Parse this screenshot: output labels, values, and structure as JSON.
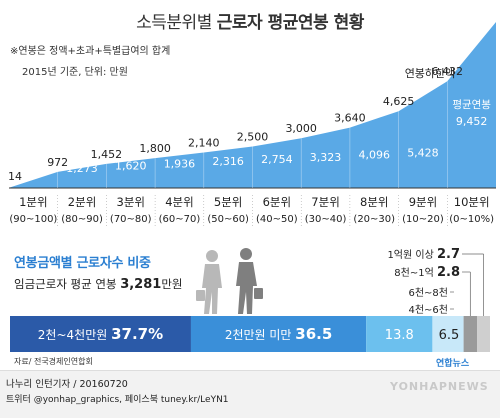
{
  "title": {
    "light": "소득분위별",
    "bold": "근로자 평균연봉 현황"
  },
  "notes": {
    "line1": "※연봉은 정액+초과+특별급여의 합계",
    "line2": "2015년 기준, 단위: 만원"
  },
  "chart_data": [
    {
      "type": "area",
      "categories": [
        "1분위",
        "2분위",
        "3분위",
        "4분위",
        "5분위",
        "6분위",
        "7분위",
        "8분위",
        "9분위",
        "10분위"
      ],
      "category_ranges": [
        "(90~100)",
        "(80~90)",
        "(70~80)",
        "(60~70)",
        "(50~60)",
        "(40~50)",
        "(30~40)",
        "(20~30)",
        "(10~20)",
        "(0~10%)"
      ],
      "series": [
        {
          "name": "평균연봉",
          "values": [
            601,
            1273,
            1620,
            1936,
            2316,
            2754,
            3323,
            4096,
            5428,
            9452
          ]
        }
      ],
      "min_values": [
        14,
        972,
        1452,
        1800,
        2140,
        2500,
        3000,
        3640,
        4625,
        6432
      ],
      "min_label": "연봉하한액",
      "avg_label": "평균연봉",
      "colors": {
        "area": "#5aa9e6",
        "area_light": "#bfe0f7",
        "text_on_area": "#ffffff",
        "min_text": "#222222"
      }
    },
    {
      "type": "bar",
      "title": "연봉금액별 근로자수 비중",
      "subtitle": "임금근로자 평균 연봉",
      "subtitle_value": "3,281",
      "subtitle_unit": "만원",
      "segments": [
        {
          "label": "2천~4천만원",
          "value": 37.7,
          "display": "37.7%",
          "color": "#2b5aa8"
        },
        {
          "label": "2천만원 미만",
          "value": 36.5,
          "display": "36.5",
          "color": "#3a8fd9"
        },
        {
          "label": "4천~6천",
          "value": 13.8,
          "display": "13.8",
          "color": "#6cc0ee"
        },
        {
          "label": "6천~8천",
          "value": 6.5,
          "display": "6.5",
          "color": "#c8e8f9"
        },
        {
          "label": "8천~1억",
          "value": 2.8,
          "display": "2.8",
          "color": "#9a9a9a"
        },
        {
          "label": "1억원 이상",
          "value": 2.7,
          "display": "2.7",
          "color": "#cfcfcf"
        }
      ]
    }
  ],
  "source": "자료/ 전국경제인연합회",
  "footer": {
    "author_line": "나누리 인턴기자 / 20160720",
    "social_line": "트위터 @yonhap_graphics, 페이스북 tuney.kr/LeYN1",
    "logo": "연합뉴스",
    "watermark": "YONHAPNEWS"
  }
}
